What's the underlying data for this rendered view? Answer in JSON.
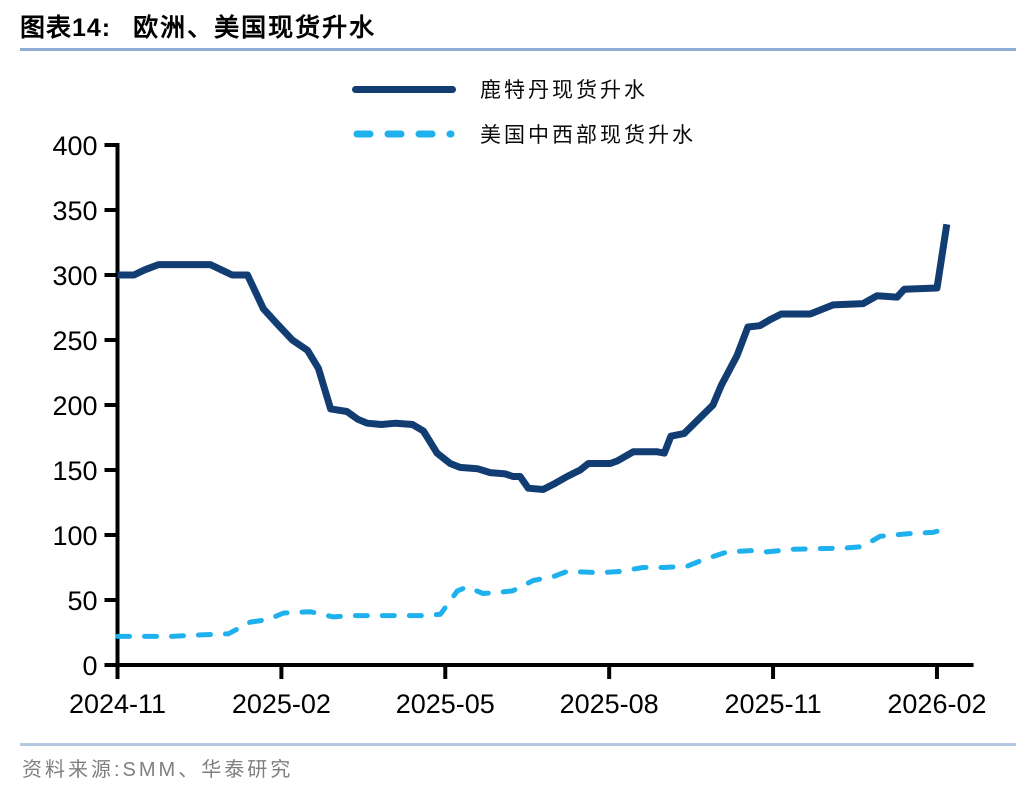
{
  "header": {
    "figure_label": "图表14:",
    "title": "欧洲、美国现货升水"
  },
  "footer": {
    "source": "资料来源:SMM、华泰研究"
  },
  "colors": {
    "rotterdam_line": "#123d73",
    "us_midwest_line": "#1fb0ee",
    "axis": "#000000",
    "title_rule": "#8fadd2",
    "footer_rule": "#b3c9e4",
    "footer_text": "#7f7f7f"
  },
  "chart_data": {
    "type": "line",
    "title": "欧洲、美国现货升水",
    "xlabel": "",
    "ylabel": "",
    "x_unit": "months since 2024-11",
    "x_tick_labels": [
      "2024-11",
      "2025-02",
      "2025-05",
      "2025-08",
      "2025-11",
      "2026-02"
    ],
    "x_tick_positions": [
      0,
      3,
      6,
      9,
      12,
      15
    ],
    "xlim": [
      0,
      15.45
    ],
    "ylim": [
      0,
      400
    ],
    "yticks": [
      0,
      50,
      100,
      150,
      200,
      250,
      300,
      350,
      400
    ],
    "grid": false,
    "legend_position": "top",
    "series": [
      {
        "name": "鹿特丹现货升水",
        "color": "#123d73",
        "style": "solid",
        "points": [
          [
            0,
            300
          ],
          [
            0.3,
            300
          ],
          [
            0.5,
            304
          ],
          [
            0.75,
            308
          ],
          [
            1.7,
            308
          ],
          [
            1.9,
            304
          ],
          [
            2.1,
            300
          ],
          [
            2.38,
            300
          ],
          [
            2.67,
            274
          ],
          [
            2.93,
            262
          ],
          [
            3.2,
            250
          ],
          [
            3.48,
            242
          ],
          [
            3.68,
            228
          ],
          [
            3.9,
            197
          ],
          [
            4.2,
            195
          ],
          [
            4.4,
            189
          ],
          [
            4.57,
            186
          ],
          [
            4.83,
            185
          ],
          [
            5.09,
            186
          ],
          [
            5.4,
            185
          ],
          [
            5.6,
            180
          ],
          [
            5.85,
            163
          ],
          [
            6.09,
            155
          ],
          [
            6.27,
            152
          ],
          [
            6.59,
            151
          ],
          [
            6.82,
            148
          ],
          [
            7.1,
            147
          ],
          [
            7.24,
            145
          ],
          [
            7.37,
            145
          ],
          [
            7.52,
            136
          ],
          [
            7.79,
            135
          ],
          [
            7.98,
            139
          ],
          [
            8.23,
            145
          ],
          [
            8.47,
            150
          ],
          [
            8.62,
            155
          ],
          [
            9.02,
            155
          ],
          [
            9.15,
            157
          ],
          [
            9.44,
            164
          ],
          [
            9.88,
            164
          ],
          [
            10.01,
            163
          ],
          [
            10.13,
            176
          ],
          [
            10.37,
            178
          ],
          [
            10.9,
            200
          ],
          [
            11.05,
            215
          ],
          [
            11.34,
            238
          ],
          [
            11.54,
            260
          ],
          [
            11.76,
            261
          ],
          [
            11.96,
            266
          ],
          [
            12.15,
            270
          ],
          [
            12.68,
            270
          ],
          [
            13.1,
            277
          ],
          [
            13.65,
            278
          ],
          [
            13.9,
            284
          ],
          [
            14.27,
            283
          ],
          [
            14.4,
            289
          ],
          [
            15,
            290
          ],
          [
            15.18,
            339
          ]
        ]
      },
      {
        "name": "美国中西部现货升水",
        "color": "#1fb0ee",
        "style": "dashed",
        "points": [
          [
            0,
            22
          ],
          [
            1,
            22
          ],
          [
            1.43,
            23
          ],
          [
            2.03,
            24
          ],
          [
            2.43,
            33
          ],
          [
            2.76,
            35
          ],
          [
            3.04,
            40
          ],
          [
            3.53,
            41
          ],
          [
            3.95,
            37
          ],
          [
            4.3,
            38
          ],
          [
            5.63,
            38
          ],
          [
            5.91,
            39
          ],
          [
            6.22,
            57
          ],
          [
            6.4,
            60
          ],
          [
            6.69,
            55
          ],
          [
            7.01,
            56
          ],
          [
            7.23,
            57
          ],
          [
            7.61,
            65
          ],
          [
            7.98,
            68
          ],
          [
            8.23,
            72
          ],
          [
            8.84,
            71
          ],
          [
            9.2,
            72
          ],
          [
            9.62,
            75
          ],
          [
            9.99,
            75
          ],
          [
            10.43,
            76
          ],
          [
            10.72,
            81
          ],
          [
            11.16,
            87
          ],
          [
            11.63,
            88
          ],
          [
            11.89,
            87
          ],
          [
            12.37,
            89
          ],
          [
            13.32,
            90
          ],
          [
            13.63,
            91
          ],
          [
            13.96,
            99
          ],
          [
            14.47,
            101
          ],
          [
            14.93,
            102
          ],
          [
            15.18,
            105
          ]
        ]
      }
    ]
  }
}
